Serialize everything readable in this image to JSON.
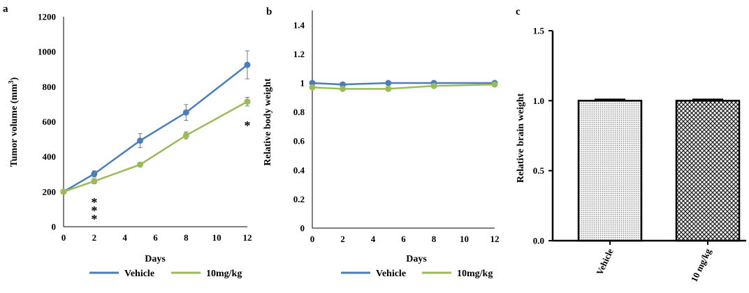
{
  "chart_data": [
    {
      "panel": "a",
      "type": "line",
      "xlabel": "Days",
      "ylabel": "Tumor volume (mm3)",
      "ylabel_main": "Tumor volume (mm",
      "ylabel_sup": "3",
      "ylabel_end": ")",
      "x": [
        0,
        2,
        5,
        8,
        12
      ],
      "xticks": [
        0,
        2,
        4,
        6,
        8,
        10,
        12
      ],
      "xlim": [
        0,
        12
      ],
      "ylim": [
        0,
        1200
      ],
      "yticks": [
        0,
        200,
        400,
        600,
        800,
        1000,
        1200
      ],
      "series": [
        {
          "name": "Vehicle",
          "color": "#4a7ebb",
          "values": [
            200,
            302,
            492,
            653,
            925
          ],
          "errors": [
            0,
            18,
            40,
            45,
            80
          ]
        },
        {
          "name": "10mg/kg",
          "color": "#9bbb59",
          "values": [
            200,
            260,
            355,
            522,
            715
          ],
          "errors": [
            0,
            15,
            12,
            20,
            25
          ]
        }
      ],
      "annotations": [
        {
          "x": 2,
          "label": "*"
        },
        {
          "x": 2,
          "label": "*"
        },
        {
          "x": 2,
          "label": "*"
        },
        {
          "x": 12,
          "label": "*"
        }
      ],
      "legend": "bottom"
    },
    {
      "panel": "b",
      "type": "line",
      "xlabel": "Days",
      "ylabel": "Relative body weight",
      "x": [
        0,
        2,
        5,
        8,
        12
      ],
      "xticks": [
        0,
        2,
        4,
        6,
        8,
        10,
        12
      ],
      "xlim": [
        0,
        12
      ],
      "ylim": [
        0,
        1.5
      ],
      "yticks": [
        "0",
        "0.2",
        "0.4",
        "0.6",
        "0.8",
        "1",
        "1.2",
        "1.4"
      ],
      "ytick_values": [
        0,
        0.2,
        0.4,
        0.6,
        0.8,
        1.0,
        1.2,
        1.4
      ],
      "series": [
        {
          "name": "Vehicle",
          "color": "#4a7ebb",
          "values": [
            1.0,
            0.99,
            1.0,
            1.0,
            1.0
          ]
        },
        {
          "name": "10mg/kg",
          "color": "#9bbb59",
          "values": [
            0.97,
            0.96,
            0.96,
            0.98,
            0.99
          ]
        }
      ],
      "legend": "bottom"
    },
    {
      "panel": "c",
      "type": "bar",
      "ylabel": "Relative brain weight",
      "categories": [
        "Vehicle",
        "10 mg/kg"
      ],
      "values": [
        1.0,
        1.0
      ],
      "errors": [
        0.01,
        0.01
      ],
      "ylim": [
        0,
        1.5
      ],
      "yticks": [
        "0.0",
        "0.5",
        "1.0",
        "1.5"
      ],
      "ytick_values": [
        0,
        0.5,
        1.0,
        1.5
      ]
    }
  ]
}
